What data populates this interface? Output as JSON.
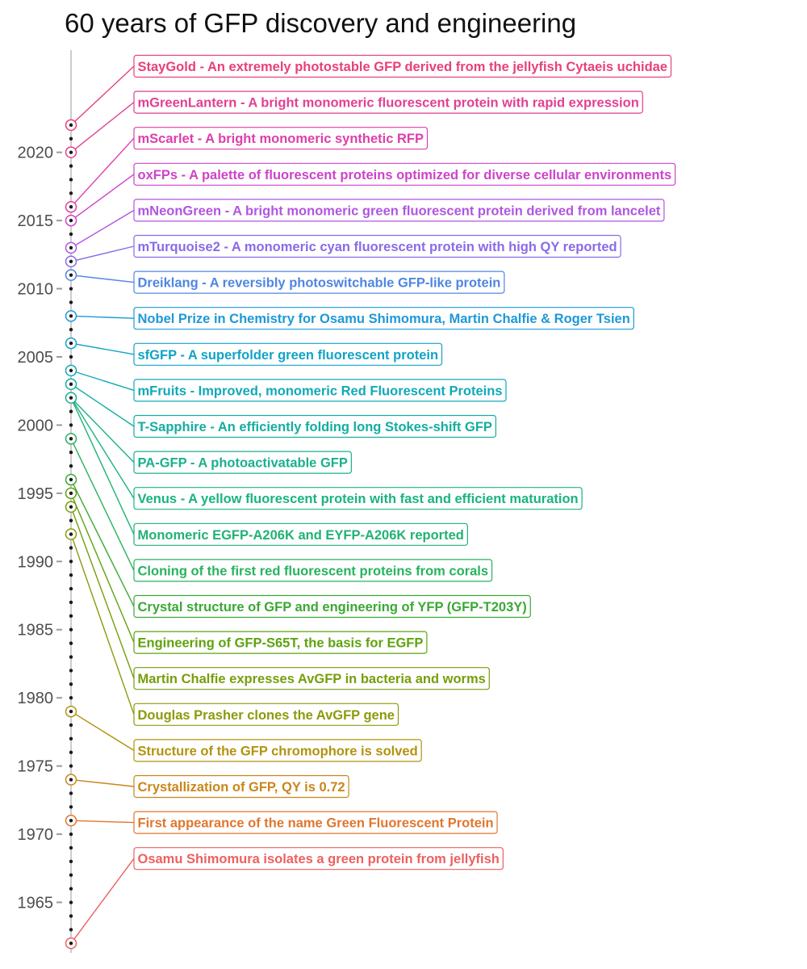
{
  "chart_data": {
    "type": "timeline",
    "title": "60 years of GFP discovery and engineering",
    "ylim": [
      1961.3,
      2027.5
    ],
    "y_ticks": [
      1965,
      1970,
      1975,
      1980,
      1985,
      1990,
      1995,
      2000,
      2005,
      2010,
      2015,
      2020
    ],
    "dotted_years_range": [
      1962,
      2022
    ],
    "events": [
      {
        "year": 2022,
        "label": "StayGold - An extremely photostable GFP derived from the jellyfish Cytaeis uchidae",
        "color": "#e8407b"
      },
      {
        "year": 2020,
        "label": "mGreenLantern - A bright monomeric fluorescent protein with rapid expression",
        "color": "#e33f92"
      },
      {
        "year": 2016,
        "label": "mScarlet - A bright monomeric synthetic RFP",
        "color": "#dd3fab"
      },
      {
        "year": 2015,
        "label": "oxFPs - A palette of fluorescent proteins optimized for diverse cellular environments",
        "color": "#cd43c9"
      },
      {
        "year": 2013,
        "label": "mNeonGreen - A bright monomeric green fluorescent protein derived from lancelet",
        "color": "#b155e0"
      },
      {
        "year": 2012,
        "label": "mTurquoise2 - A monomeric cyan fluorescent protein with high QY reported",
        "color": "#8a6ae8"
      },
      {
        "year": 2011,
        "label": "Dreiklang - A reversibly photoswitchable GFP-like protein",
        "color": "#4f86e2"
      },
      {
        "year": 2008,
        "label": "Nobel Prize in Chemistry for Osamu Shimomura, Martin Chalfie & Roger Tsien",
        "color": "#1d99d6"
      },
      {
        "year": 2006,
        "label": "sfGFP - A superfolder green fluorescent protein",
        "color": "#10a3c7"
      },
      {
        "year": 2004,
        "label": "mFruits - Improved, monomeric Red Fluorescent Proteins",
        "color": "#10a9b8"
      },
      {
        "year": 2003,
        "label": "T-Sapphire - An efficiently folding long Stokes-shift GFP",
        "color": "#13ae9f"
      },
      {
        "year": 2002,
        "label": "PA-GFP - A photoactivatable GFP",
        "color": "#19b08c"
      },
      {
        "year": 2002,
        "label": "Venus - A yellow fluorescent protein with fast and efficient maturation",
        "color": "#1ab380"
      },
      {
        "year": 2002,
        "label": "Monomeric EGFP-A206K and EYFP-A206K reported",
        "color": "#20b274"
      },
      {
        "year": 1999,
        "label": "Cloning of the first red fluorescent proteins from corals",
        "color": "#27b35e"
      },
      {
        "year": 1996,
        "label": "Crystal structure of GFP and engineering of YFP (GFP-T203Y)",
        "color": "#3aa833"
      },
      {
        "year": 1995,
        "label": "Engineering of GFP-S65T, the basis for EGFP",
        "color": "#5ea30f"
      },
      {
        "year": 1994,
        "label": "Martin Chalfie expresses AvGFP in bacteria and worms",
        "color": "#779e0c"
      },
      {
        "year": 1992,
        "label": "Douglas Prasher clones the AvGFP gene",
        "color": "#8e9a0b"
      },
      {
        "year": 1979,
        "label": "Structure of the GFP chromophore is solved",
        "color": "#b3920c"
      },
      {
        "year": 1974,
        "label": "Crystallization of GFP, QY is 0.72",
        "color": "#c9861a"
      },
      {
        "year": 1971,
        "label": "First appearance of the name Green Fluorescent Protein",
        "color": "#e0762f"
      },
      {
        "year": 1962,
        "label": "Osamu Shimomura isolates a green protein from jellyfish",
        "color": "#ee6060"
      }
    ]
  }
}
